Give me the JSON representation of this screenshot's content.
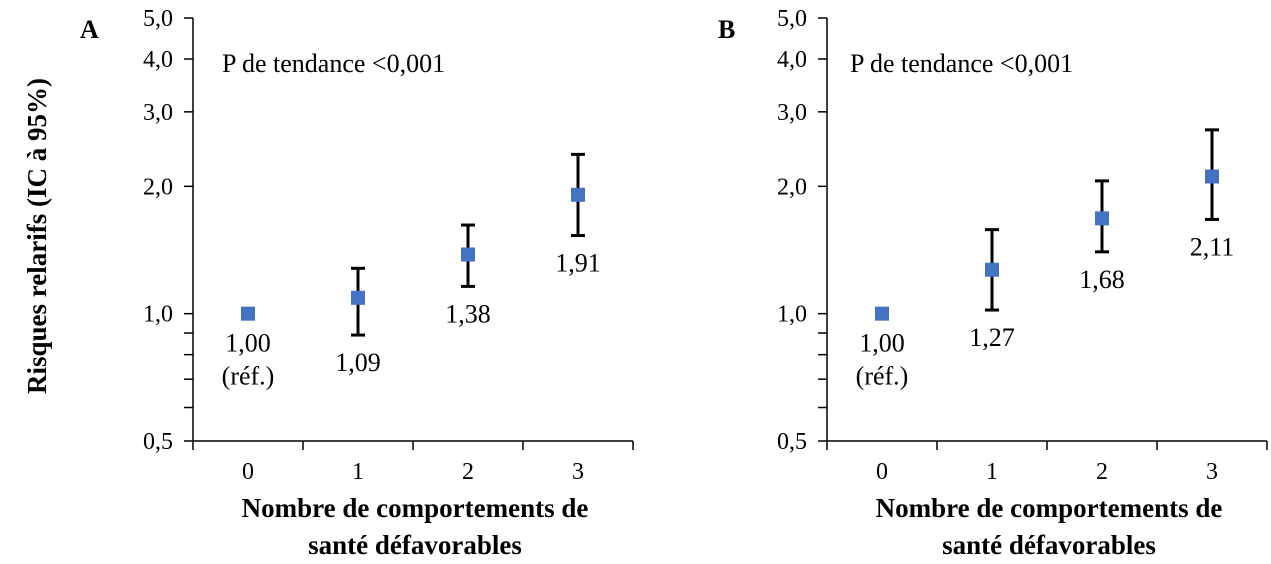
{
  "chart_data": {
    "type": "scatter",
    "ylabel": "Risques relarifs (IC à 95%)",
    "yscale": "log",
    "ylim": [
      0.5,
      5.0
    ],
    "ytick_values": [
      0.5,
      1.0,
      2.0,
      3.0,
      4.0,
      5.0
    ],
    "ytick_labels": [
      "0,5",
      "1,0",
      "2,0",
      "3,0",
      "4,0",
      "5,0"
    ],
    "marker_color": "#4472C4",
    "error_bar_color": "#000000",
    "panels": [
      {
        "letter": "A",
        "annotation": "P de tendance <0,001",
        "xlabel": "Nombre de comportements de santé défavorables",
        "xlabel_lines": [
          "Nombre de comportements de",
          "santé défavorables"
        ],
        "categories": [
          "0",
          "1",
          "2",
          "3"
        ],
        "values": [
          1.0,
          1.09,
          1.38,
          1.91
        ],
        "ci_low": [
          null,
          0.89,
          1.16,
          1.53
        ],
        "ci_high": [
          null,
          1.28,
          1.62,
          2.38
        ],
        "labels": [
          [
            "1,00",
            "(réf.)"
          ],
          [
            "1,09"
          ],
          [
            "1,38"
          ],
          [
            "1,91"
          ]
        ]
      },
      {
        "letter": "B",
        "annotation": "P  de tendance <0,001",
        "xlabel": "Nombre de comportements de santé défavorables",
        "xlabel_lines": [
          "Nombre de comportements de",
          "santé défavorables"
        ],
        "categories": [
          "0",
          "1",
          "2",
          "3"
        ],
        "values": [
          1.0,
          1.27,
          1.68,
          2.11
        ],
        "ci_low": [
          null,
          1.02,
          1.4,
          1.67
        ],
        "ci_high": [
          null,
          1.58,
          2.06,
          2.72
        ],
        "labels": [
          [
            "1,00",
            "(réf.)"
          ],
          [
            "1,27"
          ],
          [
            "1,68"
          ],
          [
            "2,11"
          ]
        ]
      }
    ]
  }
}
